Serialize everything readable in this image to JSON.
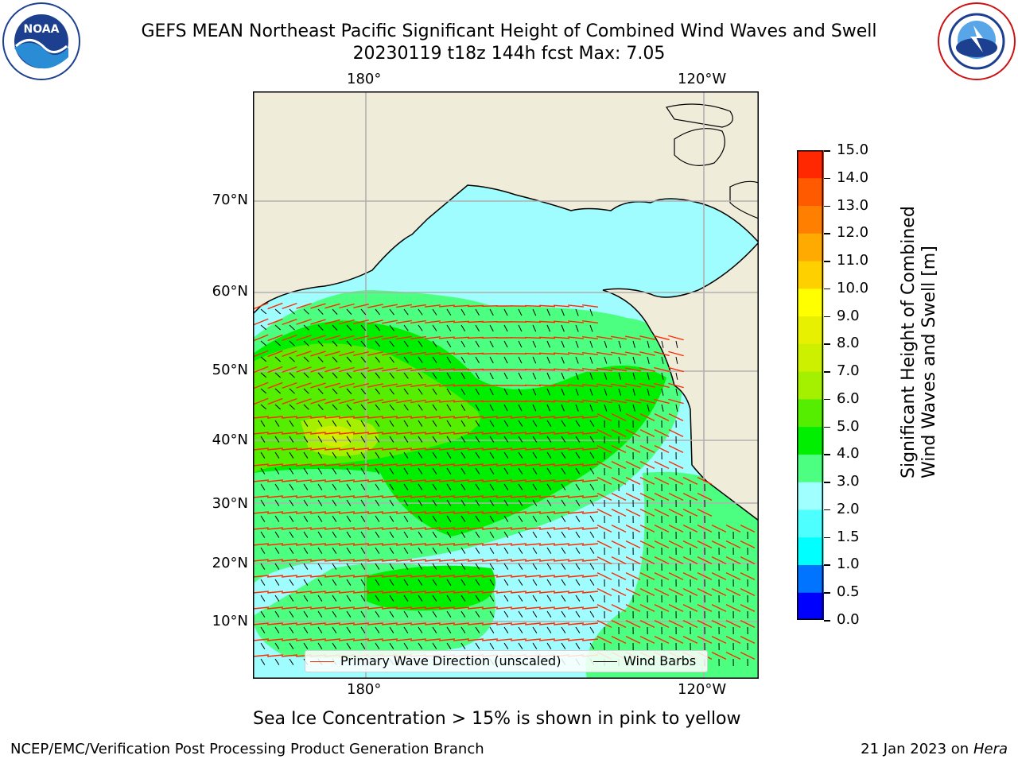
{
  "header": {
    "title": "GEFS MEAN Northeast Pacific Significant Height of Combined Wind Waves and Swell",
    "subtitle": "20230119 t18z 144h fcst   Max: 7.05"
  },
  "logos": {
    "left": {
      "icon": "noaa-logo",
      "text": "NOAA"
    },
    "right": {
      "icon": "nws-logo",
      "text": "NATIONAL WEATHER SERVICE"
    }
  },
  "map": {
    "lon_labels_top": [
      "180°",
      "120°W"
    ],
    "lon_labels_bottom": [
      "180°",
      "120°W"
    ],
    "lat_labels": [
      "70°N",
      "60°N",
      "50°N",
      "40°N",
      "30°N",
      "20°N",
      "10°N"
    ],
    "legend": {
      "wave_label": "Primary Wave Direction (unscaled)",
      "wind_label": "Wind Barbs",
      "wave_color": "#ff2a00",
      "wind_color": "#000000"
    },
    "land_color": "#efedd9",
    "ocean_color": "#9ffcff"
  },
  "colorbar": {
    "label_line1": "Significant Height of Combined",
    "label_line2": "Wind Waves and Swell [m]",
    "ticks": [
      "0.0",
      "0.5",
      "1.0",
      "1.5",
      "2.0",
      "3.0",
      "4.0",
      "5.0",
      "6.0",
      "7.0",
      "8.0",
      "9.0",
      "10.0",
      "11.0",
      "12.0",
      "13.0",
      "14.0",
      "15.0"
    ],
    "colors": [
      "#0000ff",
      "#0073ff",
      "#00ffff",
      "#4dffff",
      "#a0ffff",
      "#4dff80",
      "#00ee00",
      "#55ee00",
      "#a5f000",
      "#ccf000",
      "#e6f000",
      "#ffff00",
      "#ffd000",
      "#ffaa00",
      "#ff8000",
      "#ff5a00",
      "#ff2800",
      "#ff0000"
    ]
  },
  "notes": {
    "ice": "Sea Ice Concentration > 15% is shown in pink to yellow"
  },
  "footer": {
    "left": "NCEP/EMC/Verification Post Processing Product Generation Branch",
    "right_date": "21 Jan 2023 on ",
    "right_host": "Hera"
  }
}
